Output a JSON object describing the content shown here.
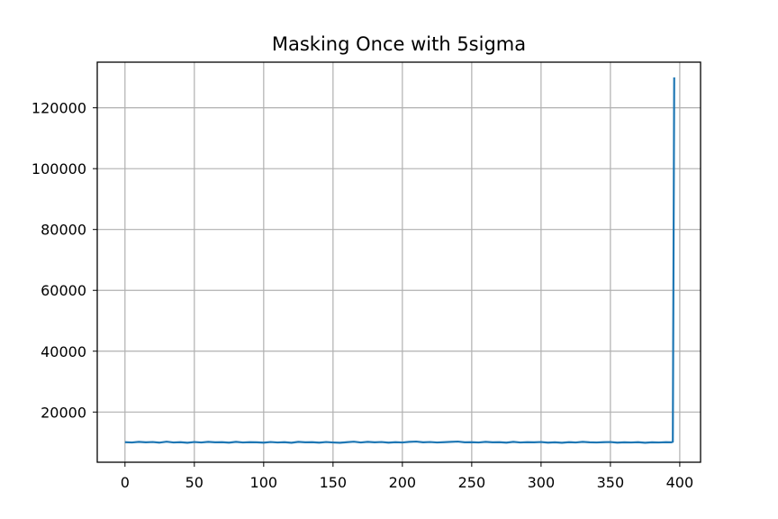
{
  "chart_data": {
    "type": "line",
    "title": "Masking Once with 5sigma",
    "xlabel": "",
    "ylabel": "",
    "xlim": [
      -20,
      415
    ],
    "ylim": [
      3500,
      135000
    ],
    "x_ticks": [
      0,
      50,
      100,
      150,
      200,
      250,
      300,
      350,
      400
    ],
    "y_ticks": [
      20000,
      40000,
      60000,
      80000,
      100000,
      120000
    ],
    "grid": true,
    "series": [
      {
        "color": "#1f77b4",
        "x": [
          0,
          5,
          10,
          15,
          20,
          25,
          30,
          35,
          40,
          45,
          50,
          55,
          60,
          65,
          70,
          75,
          80,
          85,
          90,
          95,
          100,
          105,
          110,
          115,
          120,
          125,
          130,
          135,
          140,
          145,
          150,
          155,
          160,
          165,
          170,
          175,
          180,
          185,
          190,
          195,
          200,
          205,
          210,
          215,
          220,
          225,
          230,
          235,
          240,
          245,
          250,
          255,
          260,
          265,
          270,
          275,
          280,
          285,
          290,
          295,
          300,
          305,
          310,
          315,
          320,
          325,
          330,
          335,
          340,
          345,
          350,
          355,
          360,
          365,
          370,
          375,
          380,
          385,
          390,
          394,
          395,
          396
        ],
        "y": [
          10100,
          10000,
          10200,
          10050,
          10150,
          9950,
          10250,
          10000,
          10100,
          9900,
          10150,
          10000,
          10200,
          10050,
          10100,
          9950,
          10200,
          10000,
          10100,
          10050,
          9950,
          10150,
          10000,
          10100,
          9900,
          10200,
          10050,
          10100,
          9950,
          10150,
          10000,
          9900,
          10100,
          10250,
          10000,
          10200,
          10050,
          10150,
          9950,
          10100,
          10000,
          10200,
          10300,
          10050,
          10150,
          10000,
          10100,
          10200,
          10300,
          10050,
          10100,
          10000,
          10200,
          10050,
          10100,
          9950,
          10200,
          10000,
          10100,
          10050,
          10150,
          9950,
          10050,
          9900,
          10100,
          10000,
          10200,
          10050,
          10000,
          10100,
          10150,
          9950,
          10050,
          10000,
          10100,
          9900,
          10050,
          10000,
          10100,
          10050,
          10200,
          130000
        ]
      }
    ]
  }
}
